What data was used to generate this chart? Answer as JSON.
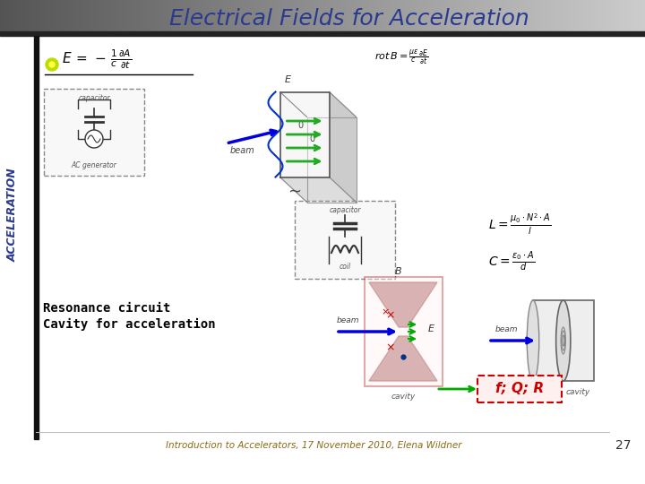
{
  "title": "Electrical Fields for Acceleration",
  "title_color": "#2B3A8F",
  "title_fontsize": 18,
  "bg_color": "#FFFFFF",
  "left_bar_color": "#2B3A8F",
  "side_text": "ACCELERATION",
  "side_text_color": "#2B3A8F",
  "footer_text": "Introduction to Accelerators, 17 November 2010, Elena Wildner",
  "footer_page": "27",
  "footer_color": "#8B6914",
  "resonance_text_line1": "Resonance circuit",
  "resonance_text_line2": "Cavity for acceleration",
  "fQR_text": "f; Q; R",
  "fQR_color": "#CC0000",
  "fQR_box_color": "#CC0000",
  "bullet_color": "#AADD00",
  "header_grad_left": "#555555",
  "header_grad_right": "#CCCCCC"
}
